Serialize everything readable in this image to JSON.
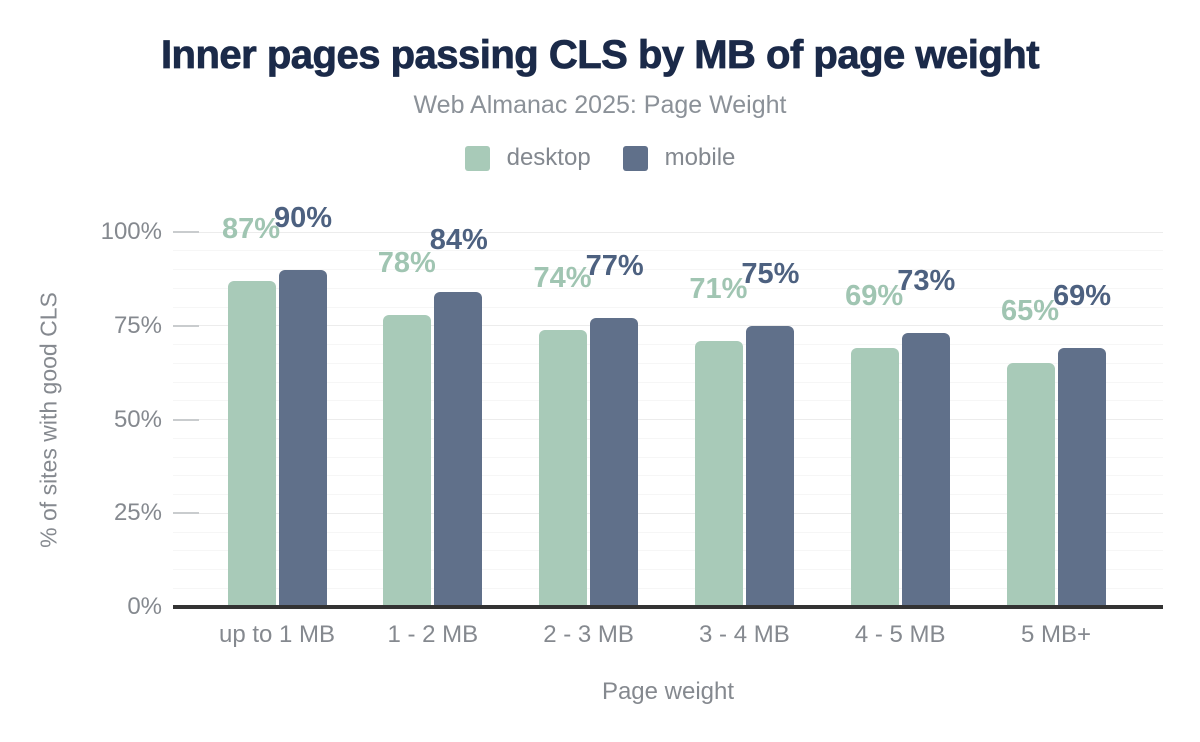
{
  "header": {
    "title": "Inner pages passing CLS by MB of page weight",
    "subtitle": "Web Almanac 2025: Page Weight"
  },
  "legend": {
    "items": [
      {
        "label": "desktop",
        "color": "#a8cab8"
      },
      {
        "label": "mobile",
        "color": "#60708a"
      }
    ]
  },
  "y_axis": {
    "title": "% of sites with good CLS",
    "ticks": [
      {
        "label": "0%",
        "value": 0
      },
      {
        "label": "25%",
        "value": 25
      },
      {
        "label": "50%",
        "value": 50
      },
      {
        "label": "75%",
        "value": 75
      },
      {
        "label": "100%",
        "value": 100
      }
    ]
  },
  "x_axis": {
    "title": "Page weight"
  },
  "chart_data": {
    "type": "bar",
    "title": "Inner pages passing CLS by MB of page weight",
    "subtitle": "Web Almanac 2025: Page Weight",
    "xlabel": "Page weight",
    "ylabel": "% of sites with good CLS",
    "ylim": [
      0,
      100
    ],
    "grid": "minor gridlines every 5%, major gridlines every 25%, legend top center",
    "categories": [
      "up to 1 MB",
      "1 - 2 MB",
      "2 - 3 MB",
      "3 - 4 MB",
      "4 - 5 MB",
      "5 MB+"
    ],
    "series": [
      {
        "name": "desktop",
        "color": "#a8cab8",
        "label_color": "#a0c5b2",
        "values": [
          87,
          78,
          74,
          71,
          69,
          65
        ],
        "labels": [
          "87%",
          "78%",
          "74%",
          "71%",
          "69%",
          "65%"
        ]
      },
      {
        "name": "mobile",
        "color": "#60708a",
        "label_color": "#4d6180",
        "values": [
          90,
          84,
          77,
          75,
          73,
          69
        ],
        "labels": [
          "90%",
          "84%",
          "77%",
          "75%",
          "73%",
          "69%"
        ]
      }
    ]
  },
  "colors": {
    "title": "#1b2a49",
    "subtitle_text": "#8b9198",
    "axis_text": "#85898f",
    "axis_line": "#333333",
    "grid_minor": "#f6f6f6",
    "grid_major": "#ececec",
    "tick_mark": "#c9ccce",
    "background": "#ffffff"
  }
}
